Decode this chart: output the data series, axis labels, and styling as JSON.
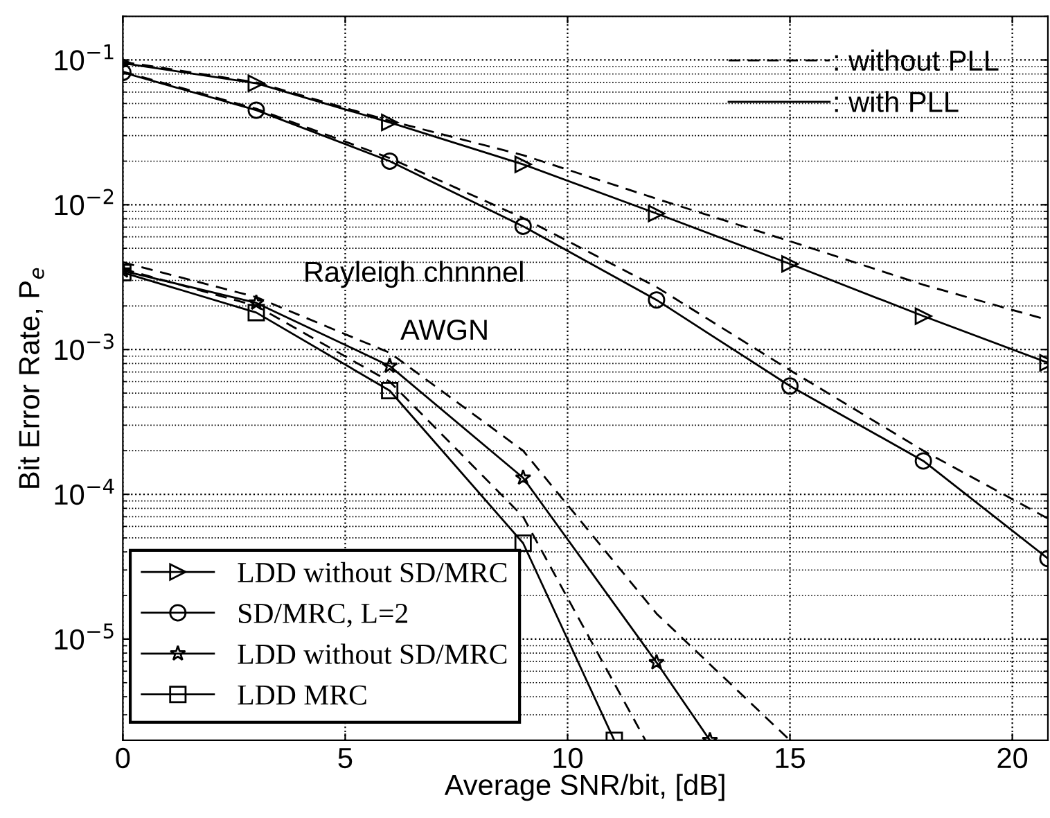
{
  "chart_data": {
    "type": "line",
    "xlabel": "Average SNR/bit, [dB]",
    "ylabel": "Bit Error Rate, P$_{e}$",
    "log": "y",
    "xlim": [
      0,
      20.8
    ],
    "ylim": [
      2e-06,
      0.2
    ],
    "xticks": [
      0,
      5,
      10,
      15,
      20
    ],
    "yticks": [
      {
        "value": 1e-05,
        "label": "10$^{−5}$"
      },
      {
        "value": 0.0001,
        "label": "10$^{−4}$"
      },
      {
        "value": 0.001,
        "label": "10$^{−3}$"
      },
      {
        "value": 0.01,
        "label": "10$^{−2}$"
      },
      {
        "value": 0.1,
        "label": "10$^{−1}$"
      }
    ],
    "grid": true,
    "legend": "bottom left",
    "annotations": [
      ": without PLL",
      ": with PLL",
      "Rayleigh chnnnel",
      "AWGN"
    ],
    "series": [
      {
        "name": "LDD without SD/MRC",
        "color": "#000000",
        "marker": "triangle",
        "line_style": "solid",
        "x": [
          0,
          3,
          6,
          9,
          12,
          15,
          18,
          20.8
        ],
        "values": [
          0.095,
          0.069,
          0.037,
          0.019,
          0.0087,
          0.0039,
          0.0017,
          0.00081
        ]
      },
      {
        "name": "SD/MRC, L=2",
        "color": "#000000",
        "marker": "circle",
        "line_style": "solid",
        "x": [
          0,
          3,
          6,
          9,
          12,
          15,
          18,
          20.8
        ],
        "values": [
          0.082,
          0.045,
          0.02,
          0.0071,
          0.0022,
          0.00056,
          0.00017,
          3.6e-05
        ]
      },
      {
        "name": "LDD without SD/MRC",
        "color": "#000000",
        "marker": "star",
        "line_style": "solid",
        "x": [
          0,
          3,
          6,
          9,
          12,
          13.2
        ],
        "values": [
          0.0035,
          0.0021,
          0.00077,
          0.00013,
          6.9e-06,
          2e-06
        ]
      },
      {
        "name": "LDD MRC",
        "color": "#000000",
        "marker": "square",
        "line_style": "solid",
        "x": [
          0,
          3,
          6,
          9,
          11.05
        ],
        "values": [
          0.0034,
          0.0018,
          0.00052,
          4.6e-05,
          2e-06
        ]
      },
      {
        "color": "#000000",
        "marker": "none",
        "line_style": "dashed",
        "x": [
          0,
          3,
          6,
          9,
          12,
          15,
          18,
          20.8
        ],
        "values": [
          0.097,
          0.07,
          0.038,
          0.022,
          0.011,
          0.0056,
          0.0028,
          0.0016
        ]
      },
      {
        "color": "#000000",
        "marker": "none",
        "line_style": "dashed",
        "x": [
          0,
          3,
          6,
          9,
          12,
          15,
          18,
          20.8
        ],
        "values": [
          0.083,
          0.046,
          0.021,
          0.0081,
          0.0027,
          0.00072,
          0.0002,
          6.8e-05
        ]
      },
      {
        "color": "#000000",
        "marker": "none",
        "line_style": "dashed",
        "x": [
          0,
          3,
          6,
          9,
          12,
          15
        ],
        "values": [
          0.004,
          0.0023,
          0.00095,
          0.0002,
          1.5e-05,
          2e-06
        ]
      },
      {
        "color": "#000000",
        "marker": "none",
        "line_style": "dashed",
        "x": [
          0,
          3,
          6,
          9,
          11.75
        ],
        "values": [
          0.0036,
          0.002,
          0.0006,
          7e-05,
          2e-06
        ]
      }
    ]
  }
}
